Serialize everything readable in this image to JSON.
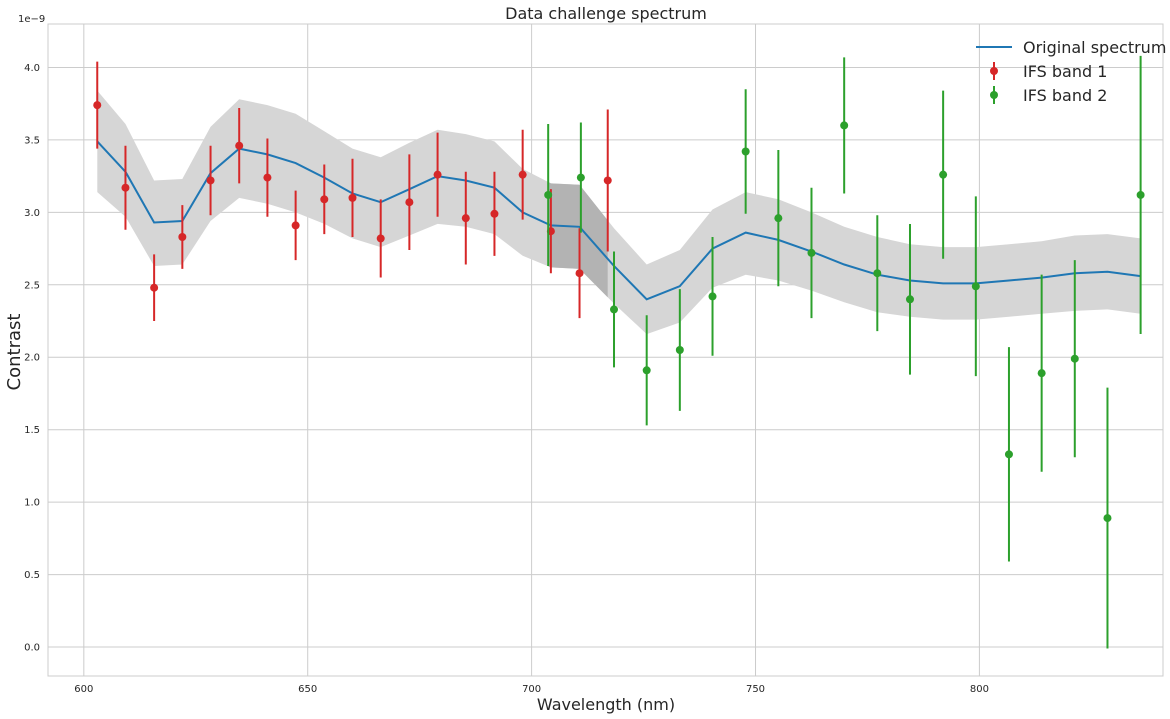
{
  "chart_data": {
    "type": "line",
    "title": "Data challenge spectrum",
    "xlabel": "Wavelength (nm)",
    "ylabel": "Contrast",
    "y_offset_label": "1e−9",
    "xlim": [
      592,
      841
    ],
    "ylim": [
      -0.2,
      4.3
    ],
    "x_ticks": [
      600,
      650,
      700,
      750,
      800
    ],
    "y_ticks": [
      0.0,
      0.5,
      1.0,
      1.5,
      2.0,
      2.5,
      3.0,
      3.5,
      4.0
    ],
    "x_tick_labels": [
      "600",
      "650",
      "700",
      "750",
      "800"
    ],
    "y_tick_labels": [
      "0.0",
      "0.5",
      "1.0",
      "1.5",
      "2.0",
      "2.5",
      "3.0",
      "3.5",
      "4.0"
    ],
    "grid": true,
    "legend_position": "top-right",
    "series": [
      {
        "name": "Original spectrum",
        "kind": "line",
        "color": "#1f77b4",
        "x": [
          603.0,
          609.3,
          615.7,
          622.0,
          628.3,
          634.7,
          641.0,
          647.3,
          653.7,
          660.0,
          666.3,
          672.7,
          679.0,
          685.3,
          691.7,
          698.0,
          704.3,
          710.7,
          718.4,
          725.7,
          733.1,
          740.4,
          747.8,
          755.1,
          762.5,
          769.8,
          777.2,
          784.5,
          791.9,
          799.2,
          806.6,
          813.9,
          821.3,
          828.6,
          836.0
        ],
        "y": [
          3.49,
          3.28,
          2.93,
          2.94,
          3.27,
          3.44,
          3.4,
          3.34,
          3.24,
          3.13,
          3.07,
          3.16,
          3.25,
          3.22,
          3.17,
          3.0,
          2.91,
          2.9,
          2.63,
          2.4,
          2.49,
          2.75,
          2.86,
          2.81,
          2.73,
          2.64,
          2.57,
          2.53,
          2.51,
          2.51,
          2.53,
          2.55,
          2.58,
          2.59,
          2.56
        ]
      },
      {
        "name": "IFS band 1",
        "kind": "errorbar",
        "color": "#d62728",
        "x": [
          603.0,
          609.3,
          615.7,
          622.0,
          628.3,
          634.7,
          641.0,
          647.3,
          653.7,
          660.0,
          666.3,
          672.7,
          679.0,
          685.3,
          691.7,
          698.0,
          704.3,
          710.7,
          717.0
        ],
        "y": [
          3.74,
          3.17,
          2.48,
          2.83,
          3.22,
          3.46,
          3.24,
          2.91,
          3.09,
          3.1,
          2.82,
          3.07,
          3.26,
          2.96,
          2.99,
          3.26,
          2.87,
          2.58,
          3.22
        ],
        "err": [
          0.3,
          0.29,
          0.23,
          0.22,
          0.24,
          0.26,
          0.27,
          0.24,
          0.24,
          0.27,
          0.27,
          0.33,
          0.29,
          0.32,
          0.29,
          0.31,
          0.29,
          0.31,
          0.49
        ]
      },
      {
        "name": "IFS band 2",
        "kind": "errorbar",
        "color": "#2ca02c",
        "x": [
          703.7,
          711.0,
          718.4,
          725.7,
          733.1,
          740.4,
          747.8,
          755.1,
          762.5,
          769.8,
          777.2,
          784.5,
          791.9,
          799.2,
          806.6,
          813.9,
          821.3,
          828.6,
          836.0
        ],
        "y": [
          3.12,
          3.24,
          2.33,
          1.91,
          2.05,
          2.42,
          3.42,
          2.96,
          2.72,
          3.6,
          2.58,
          2.4,
          3.26,
          2.49,
          1.33,
          1.89,
          1.99,
          0.89,
          3.12
        ],
        "err": [
          0.49,
          0.38,
          0.4,
          0.38,
          0.42,
          0.41,
          0.43,
          0.47,
          0.45,
          0.47,
          0.4,
          0.52,
          0.58,
          0.62,
          0.74,
          0.68,
          0.68,
          0.9,
          0.96
        ]
      }
    ],
    "uncertainty_band": {
      "color": "#d6d6d6",
      "x": [
        603.0,
        609.3,
        615.7,
        622.0,
        628.3,
        634.7,
        641.0,
        647.3,
        653.7,
        660.0,
        666.3,
        672.7,
        679.0,
        685.3,
        691.7,
        698.0,
        704.3,
        710.7,
        718.4,
        725.7,
        733.1,
        740.4,
        747.8,
        755.1,
        762.5,
        769.8,
        777.2,
        784.5,
        791.9,
        799.2,
        806.6,
        813.9,
        821.3,
        828.6,
        836.0
      ],
      "lower": [
        3.14,
        2.97,
        2.63,
        2.64,
        2.94,
        3.1,
        3.06,
        3.0,
        2.92,
        2.82,
        2.76,
        2.84,
        2.92,
        2.9,
        2.85,
        2.7,
        2.62,
        2.61,
        2.37,
        2.16,
        2.24,
        2.48,
        2.57,
        2.53,
        2.46,
        2.38,
        2.31,
        2.28,
        2.26,
        2.26,
        2.28,
        2.3,
        2.32,
        2.33,
        2.3
      ],
      "upper": [
        3.84,
        3.61,
        3.22,
        3.23,
        3.59,
        3.78,
        3.74,
        3.68,
        3.56,
        3.44,
        3.38,
        3.48,
        3.57,
        3.54,
        3.49,
        3.3,
        3.2,
        3.19,
        2.89,
        2.64,
        2.74,
        3.02,
        3.14,
        3.09,
        3.0,
        2.9,
        2.83,
        2.78,
        2.76,
        2.76,
        2.78,
        2.8,
        2.84,
        2.85,
        2.82
      ]
    },
    "overlap_shade": {
      "color": "#b3b3b3",
      "x_range": [
        703.7,
        717.0
      ]
    }
  }
}
